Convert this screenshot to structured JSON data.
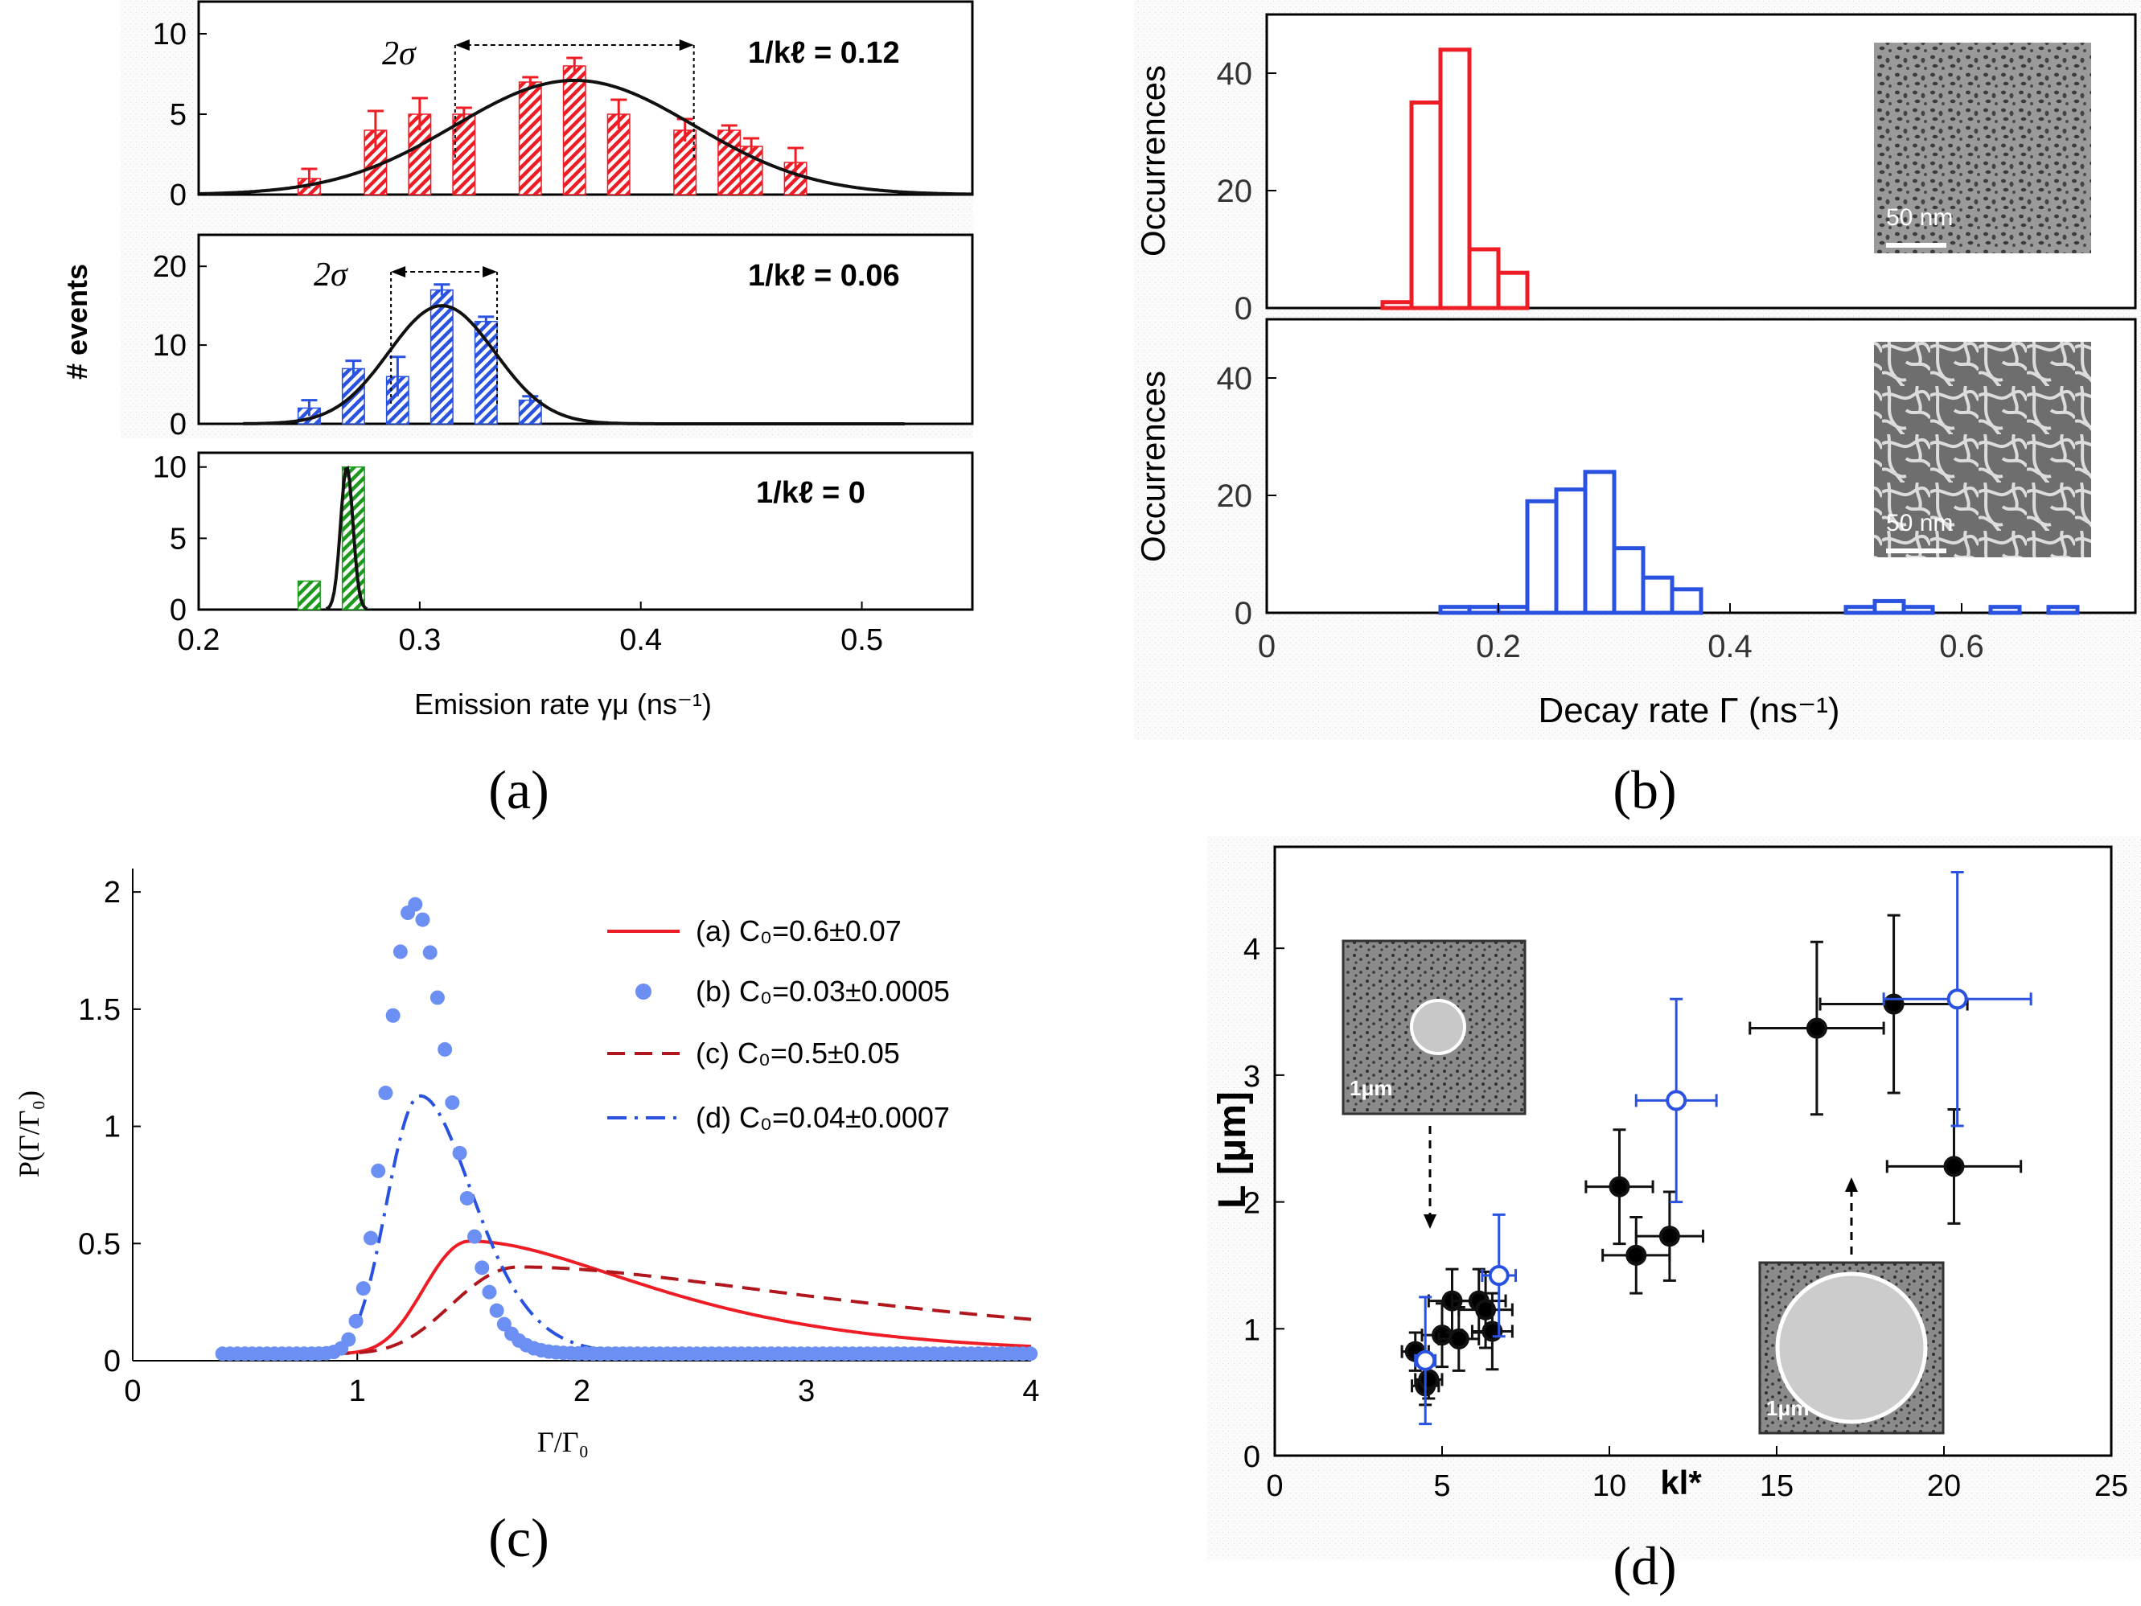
{
  "figure": {
    "labels": {
      "a": "(a)",
      "b": "(b)",
      "c": "(c)",
      "d": "(d)"
    }
  },
  "colors": {
    "red": "#ee1c25",
    "blue": "#2a52e0",
    "green": "#1d9a1d",
    "lightblue": "#6b8ff2",
    "darkred": "#b0161b",
    "black": "#111111"
  },
  "chart_data": [
    {
      "id": "a-top",
      "type": "bar",
      "subplot": "a",
      "annotation": "1/kℓ = 0.12",
      "sigma_label": "2σ",
      "sigma_range": [
        0.316,
        0.424
      ],
      "xlim": [
        0.2,
        0.55
      ],
      "ylim": [
        0,
        12
      ],
      "yticks": [
        0,
        5,
        10
      ],
      "bar_width": 0.01,
      "bars": [
        [
          0.25,
          1,
          0.6
        ],
        [
          0.28,
          4,
          1.2
        ],
        [
          0.3,
          5,
          1.0
        ],
        [
          0.32,
          5,
          0.4
        ],
        [
          0.35,
          7,
          0.3
        ],
        [
          0.37,
          8,
          0.5
        ],
        [
          0.39,
          5,
          0.9
        ],
        [
          0.42,
          4,
          0.7
        ],
        [
          0.44,
          4,
          0.3
        ],
        [
          0.45,
          3,
          0.5
        ],
        [
          0.47,
          2,
          0.9
        ]
      ],
      "fit": {
        "type": "gaussian",
        "mu": 0.37,
        "sigma": 0.054,
        "amp": 7.1
      }
    },
    {
      "id": "a-mid",
      "type": "bar",
      "subplot": "a",
      "annotation": "1/kℓ = 0.06",
      "sigma_label": "2σ",
      "sigma_range": [
        0.287,
        0.335
      ],
      "ylabel": "# events",
      "xlim": [
        0.2,
        0.55
      ],
      "ylim": [
        0,
        24
      ],
      "yticks": [
        0,
        10,
        20
      ],
      "bar_width": 0.01,
      "bars": [
        [
          0.25,
          2,
          1.0
        ],
        [
          0.27,
          7,
          1.0
        ],
        [
          0.29,
          6,
          2.5
        ],
        [
          0.31,
          17,
          0.7
        ],
        [
          0.33,
          13,
          0.6
        ],
        [
          0.35,
          3,
          0.5
        ]
      ],
      "fit": {
        "type": "gaussian",
        "mu": 0.31,
        "sigma": 0.024,
        "amp": 15
      }
    },
    {
      "id": "a-bot",
      "type": "bar",
      "subplot": "a",
      "annotation": "1/kℓ = 0",
      "xlabel": "Emission rate γμ (ns⁻¹)",
      "xlim": [
        0.2,
        0.55
      ],
      "ylim": [
        0,
        11
      ],
      "yticks": [
        0,
        5,
        10
      ],
      "xticks": [
        "0.2",
        "0.3",
        "0.4",
        "0.5"
      ],
      "bar_width": 0.01,
      "bars": [
        [
          0.25,
          2,
          0
        ],
        [
          0.27,
          10,
          0
        ]
      ],
      "fit": {
        "type": "gaussian",
        "mu": 0.267,
        "sigma": 0.0028,
        "amp": 10
      }
    },
    {
      "id": "b-top",
      "type": "bar",
      "subplot": "b",
      "ylabel": "Occurrences",
      "inset_scale": "50 nm",
      "xlim": [
        0,
        0.75
      ],
      "ylim": [
        0,
        50
      ],
      "yticks": [
        0,
        20,
        40
      ],
      "bin_width": 0.025,
      "bins": [
        [
          0.1,
          1
        ],
        [
          0.125,
          35
        ],
        [
          0.15,
          44
        ],
        [
          0.175,
          10
        ],
        [
          0.2,
          6
        ]
      ]
    },
    {
      "id": "b-bot",
      "type": "bar",
      "subplot": "b",
      "ylabel": "Occurrences",
      "xlabel": "Decay rate Γ (ns⁻¹)",
      "inset_scale": "50 nm",
      "xlim": [
        0,
        0.75
      ],
      "ylim": [
        0,
        50
      ],
      "yticks": [
        0,
        20,
        40
      ],
      "xticks": [
        "0",
        "0.2",
        "0.4",
        "0.6"
      ],
      "bin_width": 0.025,
      "bins": [
        [
          0.15,
          1
        ],
        [
          0.175,
          1
        ],
        [
          0.2,
          1
        ],
        [
          0.225,
          19
        ],
        [
          0.25,
          21
        ],
        [
          0.275,
          24
        ],
        [
          0.3,
          11
        ],
        [
          0.325,
          6
        ],
        [
          0.35,
          4
        ],
        [
          0.375,
          0
        ],
        [
          0.5,
          1
        ],
        [
          0.525,
          2
        ],
        [
          0.55,
          1
        ],
        [
          0.575,
          0
        ],
        [
          0.6,
          0
        ],
        [
          0.625,
          1
        ],
        [
          0.675,
          1
        ]
      ]
    },
    {
      "id": "c",
      "type": "line",
      "subplot": "c",
      "xlabel": "Γ/Γ₀",
      "ylabel": "P(Γ/Γ₀)",
      "xlim": [
        0,
        4
      ],
      "ylim": [
        0,
        2.1
      ],
      "xticks": [
        "0",
        "1",
        "2",
        "3",
        "4"
      ],
      "yticks": [
        "0",
        "0.5",
        "1",
        "1.5",
        "2"
      ],
      "series": [
        {
          "name": "(a) C₀=0.6±0.07",
          "style": "solid",
          "C0": 0.6
        },
        {
          "name": "(b) C₀=0.03±0.0005",
          "style": "dots",
          "C0": 0.03
        },
        {
          "name": "(c) C₀=0.5±0.05",
          "style": "dashed",
          "C0": 0.5
        },
        {
          "name": "(d) C₀=0.04±0.0007",
          "style": "dashdot",
          "C0": 0.04
        }
      ]
    },
    {
      "id": "d",
      "type": "scatter",
      "subplot": "d",
      "xlabel": "kl*",
      "ylabel": "L [μm]",
      "inset_scale": "1μm",
      "xlim": [
        0,
        25
      ],
      "ylim": [
        0,
        4.8
      ],
      "xticks": [
        "0",
        "5",
        "10",
        "15",
        "20",
        "25"
      ],
      "yticks": [
        "0",
        "1",
        "2",
        "3",
        "4"
      ],
      "black_points": [
        [
          4.2,
          0.82,
          0.4,
          0.15
        ],
        [
          4.5,
          0.55,
          0.4,
          0.15
        ],
        [
          4.6,
          0.6,
          0.4,
          0.15
        ],
        [
          5.0,
          0.95,
          0.6,
          0.25
        ],
        [
          5.3,
          1.22,
          0.7,
          0.25
        ],
        [
          5.5,
          0.92,
          0.6,
          0.25
        ],
        [
          6.1,
          1.22,
          0.8,
          0.25
        ],
        [
          6.3,
          1.15,
          0.8,
          0.3
        ],
        [
          6.5,
          0.98,
          0.6,
          0.3
        ],
        [
          10.3,
          2.12,
          1.0,
          0.45
        ],
        [
          10.8,
          1.58,
          1.0,
          0.3
        ],
        [
          11.8,
          1.73,
          1.0,
          0.35
        ],
        [
          16.2,
          3.37,
          2.0,
          0.68
        ],
        [
          18.5,
          3.56,
          2.2,
          0.7
        ],
        [
          20.3,
          2.28,
          2.0,
          0.45
        ]
      ],
      "blue_points": [
        [
          4.5,
          0.75,
          0.3,
          0.5
        ],
        [
          6.7,
          1.42,
          0.5,
          0.48
        ],
        [
          12.0,
          2.8,
          1.2,
          0.8
        ],
        [
          20.4,
          3.6,
          2.2,
          1.0
        ]
      ]
    }
  ]
}
